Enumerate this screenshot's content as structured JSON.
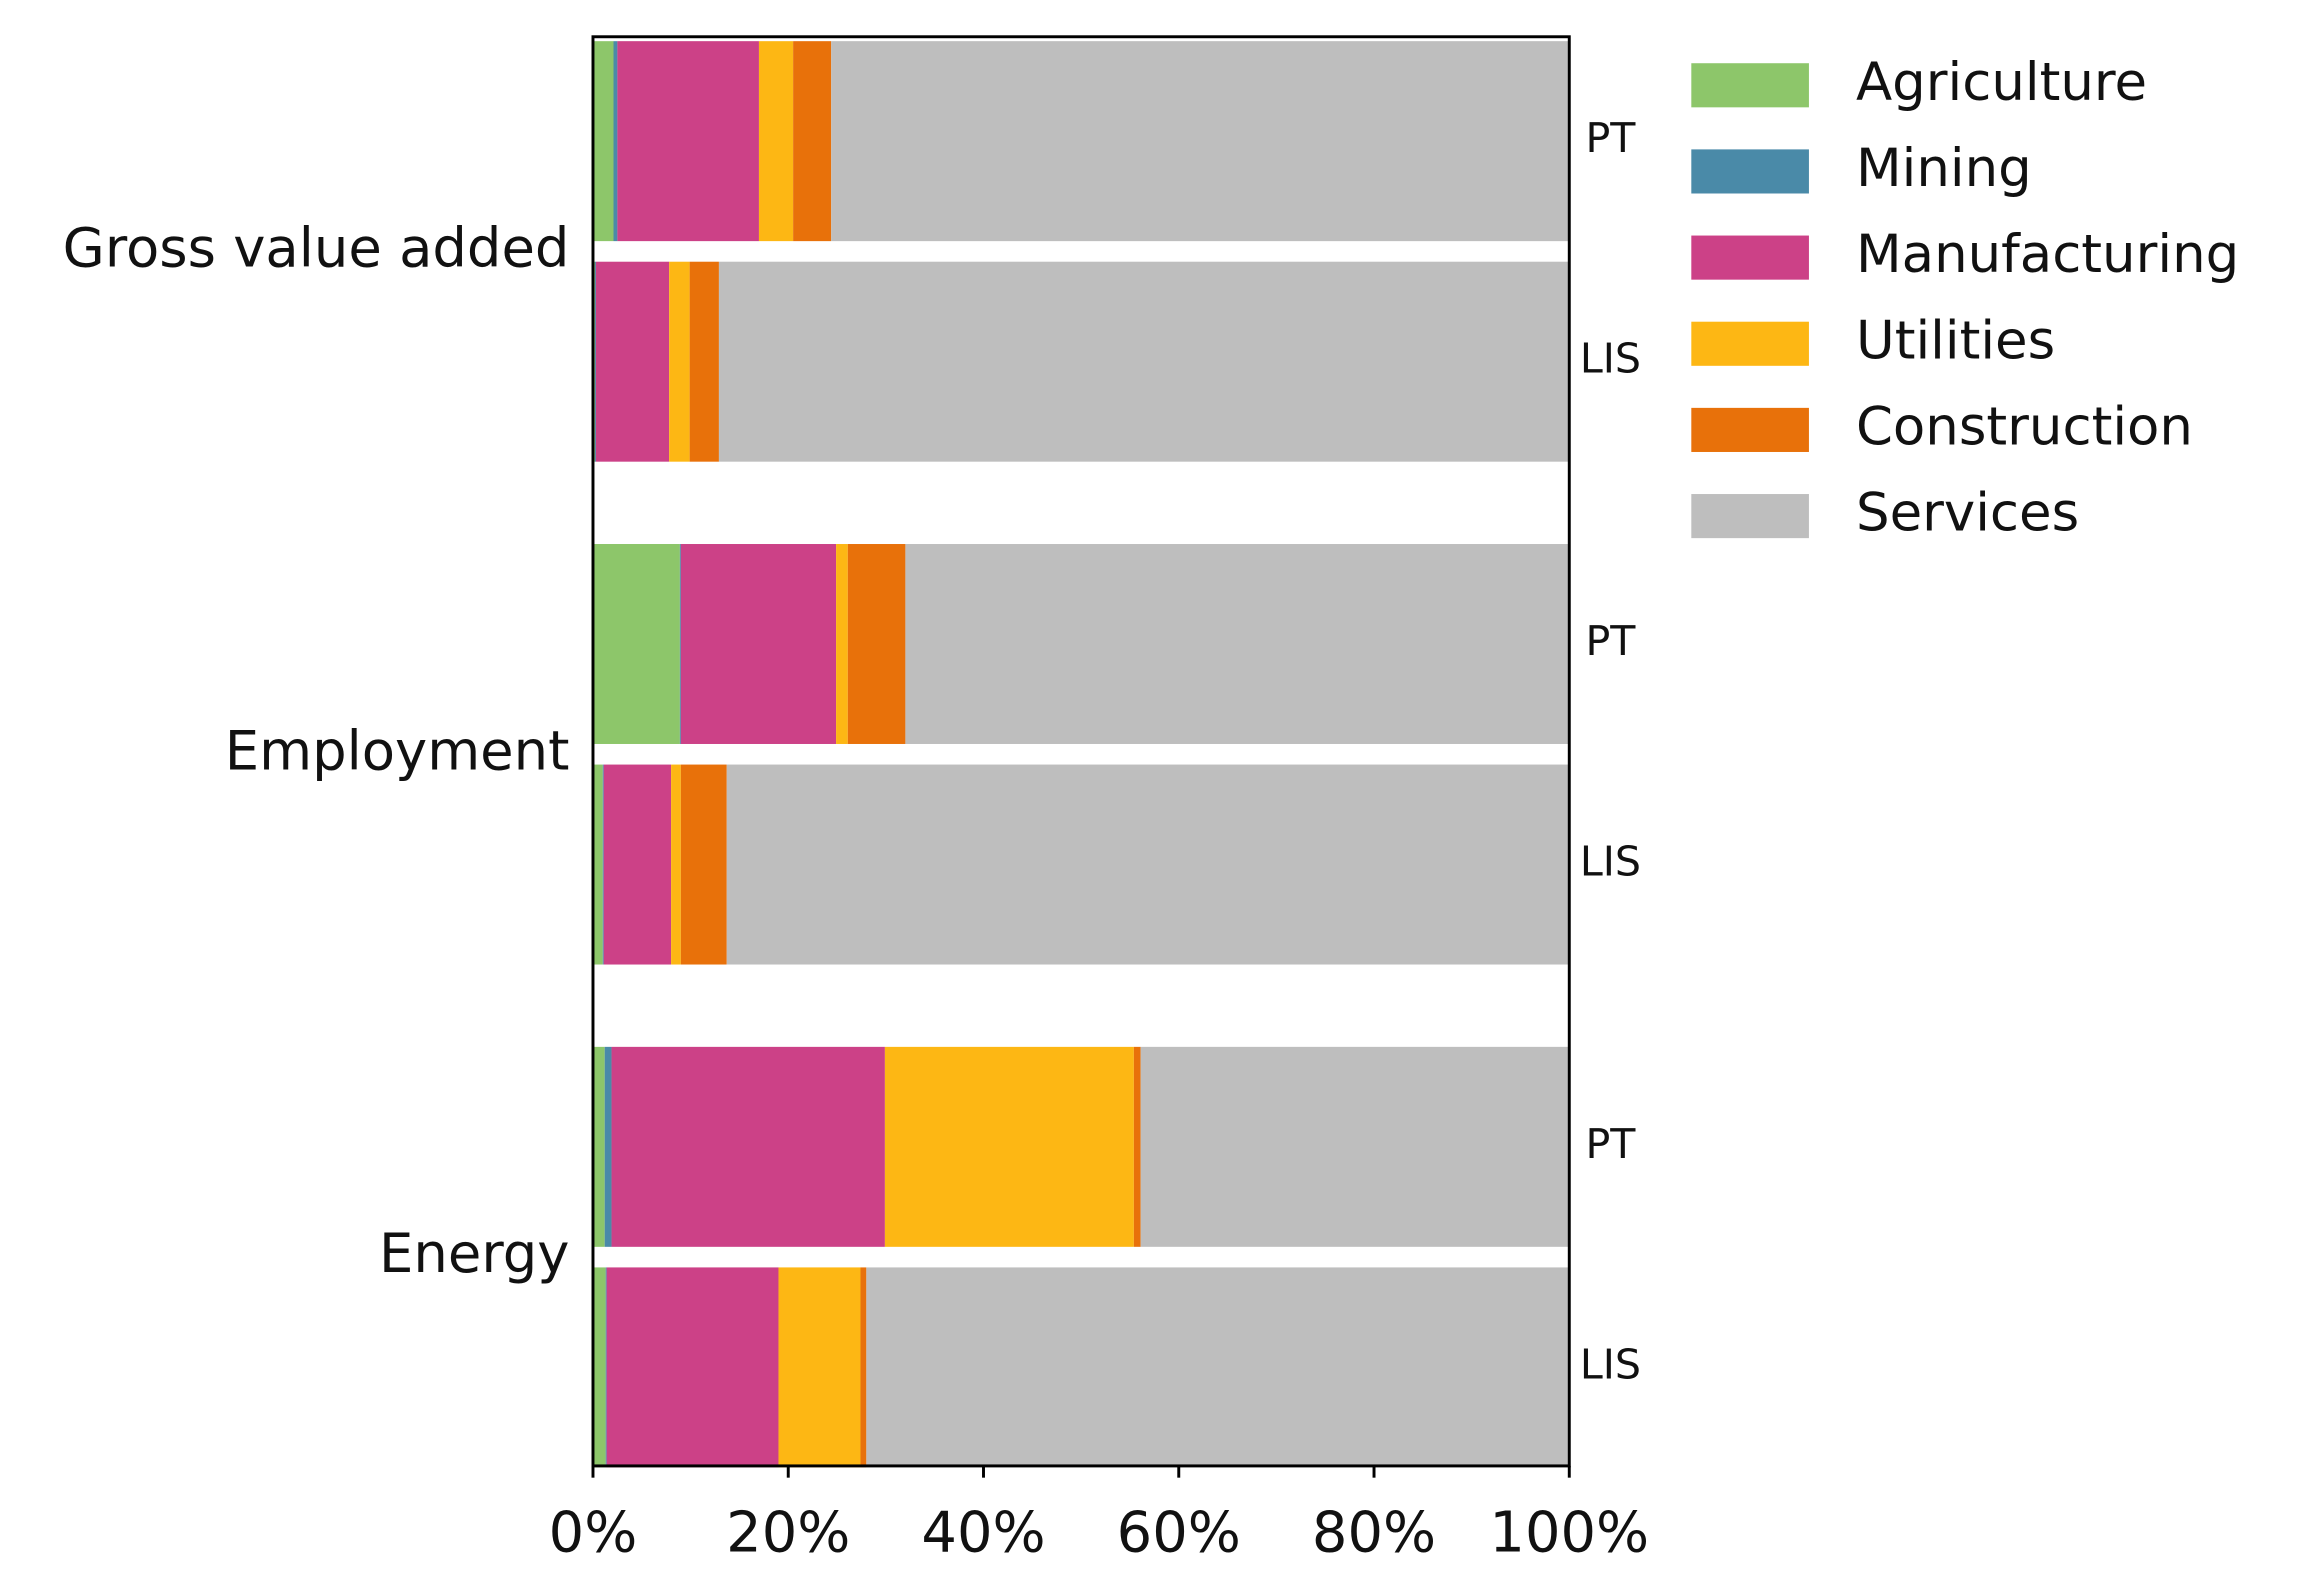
{
  "chart_data": {
    "type": "stacked-barh",
    "groups": [
      "Gross value added",
      "Employment",
      "Energy"
    ],
    "categories": [
      "PT",
      "LIS",
      "PT",
      "LIS",
      "PT",
      "LIS"
    ],
    "series": [
      {
        "name": "Agriculture",
        "color": "#8dc66a",
        "values": [
          2.1,
          0.2,
          8.9,
          1.0,
          1.2,
          1.3
        ]
      },
      {
        "name": "Mining",
        "color": "#4a8aa8",
        "values": [
          0.4,
          0.1,
          0.1,
          0.1,
          0.7,
          0.1
        ]
      },
      {
        "name": "Manufacturing",
        "color": "#cc4187",
        "values": [
          14.5,
          7.5,
          15.9,
          6.9,
          28.0,
          17.6
        ]
      },
      {
        "name": "Utilities",
        "color": "#fdb714",
        "values": [
          3.5,
          2.1,
          1.2,
          1.0,
          25.5,
          8.4
        ]
      },
      {
        "name": "Construction",
        "color": "#e8710a",
        "values": [
          3.9,
          3.0,
          5.9,
          4.7,
          0.7,
          0.6
        ]
      },
      {
        "name": "Services",
        "color": "#bebebe",
        "values": [
          75.6,
          87.1,
          68.0,
          86.3,
          43.9,
          72.0
        ]
      }
    ],
    "xlim": [
      0,
      100
    ],
    "xticks": [
      {
        "value": 0,
        "label": "0%"
      },
      {
        "value": 20,
        "label": "20%"
      },
      {
        "value": 40,
        "label": "40%"
      },
      {
        "value": 60,
        "label": "60%"
      },
      {
        "value": 80,
        "label": "80%"
      },
      {
        "value": 100,
        "label": "100%"
      }
    ],
    "legend": "upper-right-outside"
  }
}
